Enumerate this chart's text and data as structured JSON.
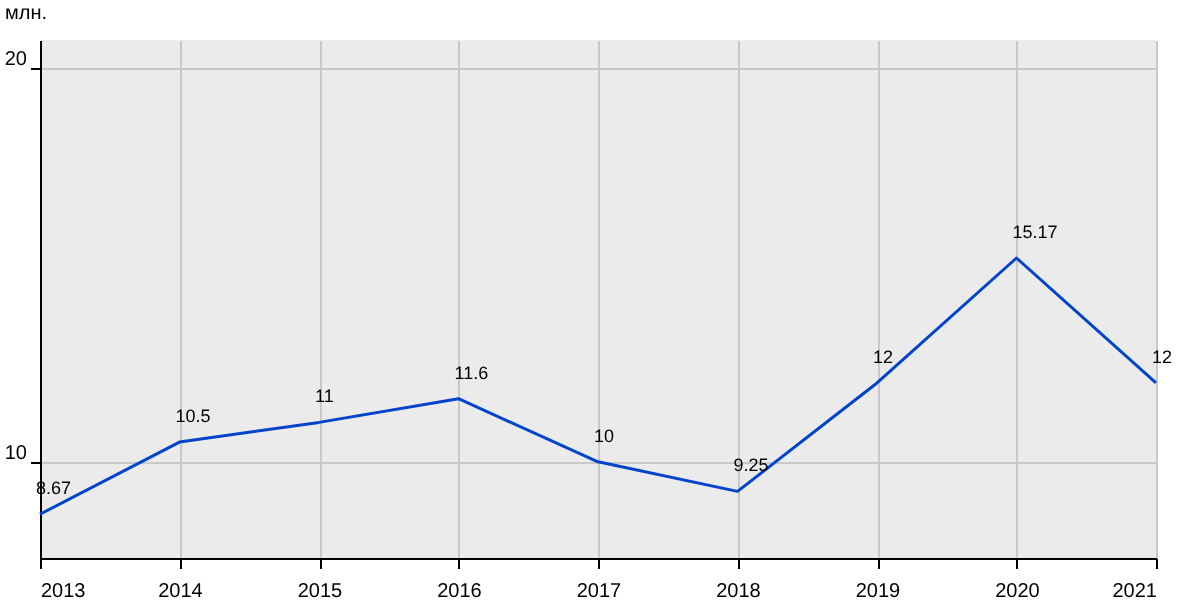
{
  "chart_data": {
    "type": "line",
    "ylabel": "млн.",
    "x": [
      2013,
      2014,
      2015,
      2016,
      2017,
      2018,
      2019,
      2020,
      2021
    ],
    "series": [
      {
        "color": "#0044cc",
        "values": [
          8.67,
          10.5,
          11,
          11.6,
          10,
          9.25,
          12,
          15.17,
          12
        ]
      }
    ],
    "xlim": [
      2013,
      2021
    ],
    "xticks": [
      2013,
      2014,
      2015,
      2016,
      2017,
      2018,
      2019,
      2020,
      2021
    ],
    "ylim": [
      7.56,
      20.7
    ],
    "yticks": [
      10,
      20
    ],
    "grid": true,
    "data_labels": true,
    "marker": "none",
    "line_style": "solid"
  }
}
